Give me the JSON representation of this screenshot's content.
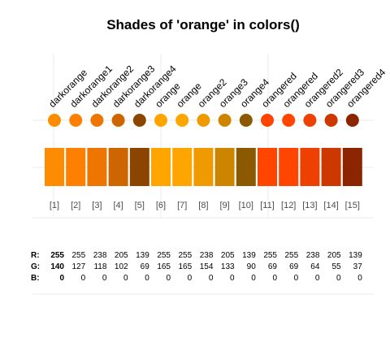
{
  "chart_data": {
    "type": "swatch",
    "title": "Shades of 'orange' in colors()",
    "colors": [
      {
        "index": "[1]",
        "name": "darkorange",
        "r": 255,
        "g": 140,
        "b": 0,
        "hex": "#FF8C00"
      },
      {
        "index": "[2]",
        "name": "darkorange1",
        "r": 255,
        "g": 127,
        "b": 0,
        "hex": "#FF7F00"
      },
      {
        "index": "[3]",
        "name": "darkorange2",
        "r": 238,
        "g": 118,
        "b": 0,
        "hex": "#EE7600"
      },
      {
        "index": "[4]",
        "name": "darkorange3",
        "r": 205,
        "g": 102,
        "b": 0,
        "hex": "#CD6600"
      },
      {
        "index": "[5]",
        "name": "darkorange4",
        "r": 139,
        "g": 69,
        "b": 0,
        "hex": "#8B4500"
      },
      {
        "index": "[6]",
        "name": "orange",
        "r": 255,
        "g": 165,
        "b": 0,
        "hex": "#FFA500"
      },
      {
        "index": "[7]",
        "name": "orange",
        "r": 255,
        "g": 165,
        "b": 0,
        "hex": "#FFA500"
      },
      {
        "index": "[8]",
        "name": "orange2",
        "r": 238,
        "g": 154,
        "b": 0,
        "hex": "#EE9A00"
      },
      {
        "index": "[9]",
        "name": "orange3",
        "r": 205,
        "g": 133,
        "b": 0,
        "hex": "#CD8500"
      },
      {
        "index": "[10]",
        "name": "orange4",
        "r": 139,
        "g": 90,
        "b": 0,
        "hex": "#8B5A00"
      },
      {
        "index": "[11]",
        "name": "orangered",
        "r": 255,
        "g": 69,
        "b": 0,
        "hex": "#FF4500"
      },
      {
        "index": "[12]",
        "name": "orangered",
        "r": 255,
        "g": 69,
        "b": 0,
        "hex": "#FF4500"
      },
      {
        "index": "[13]",
        "name": "orangered2",
        "r": 238,
        "g": 64,
        "b": 0,
        "hex": "#EE4000"
      },
      {
        "index": "[14]",
        "name": "orangered3",
        "r": 205,
        "g": 55,
        "b": 0,
        "hex": "#CD3700"
      },
      {
        "index": "[15]",
        "name": "orangered4",
        "r": 139,
        "g": 37,
        "b": 0,
        "hex": "#8B2500"
      }
    ],
    "row_labels": {
      "r": "R:",
      "g": "G:",
      "b": "B:"
    },
    "grid": true,
    "legend": "none"
  }
}
